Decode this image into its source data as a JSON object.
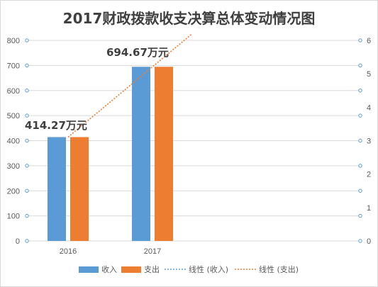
{
  "chart_data": {
    "type": "bar",
    "title": "2017财政拨款收支决算总体变动情况图",
    "categories": [
      "2016",
      "2017"
    ],
    "series": [
      {
        "name": "收入",
        "values": [
          414.27,
          694.67
        ],
        "color": "#5b9bd5"
      },
      {
        "name": "支出",
        "values": [
          414.27,
          694.67
        ],
        "color": "#ed7d31"
      }
    ],
    "trendlines": [
      {
        "name": "线性 (收入)",
        "color": "#5b9bd5",
        "style": "dotted"
      },
      {
        "name": "线性 (支出)",
        "color": "#ed7d31",
        "style": "dotted",
        "visible_from_category": "2016",
        "visible_to_category": "2017"
      }
    ],
    "data_labels": [
      "414.27万元",
      "694.67万元"
    ],
    "y_left": {
      "min": 0,
      "max": 800,
      "step": 100,
      "ticks": [
        "0",
        "100",
        "200",
        "300",
        "400",
        "500",
        "600",
        "700",
        "800"
      ]
    },
    "y_right": {
      "min": 0,
      "max": 6,
      "step": 1,
      "ticks": [
        "0",
        "1",
        "2",
        "3",
        "4",
        "5",
        "6"
      ]
    },
    "grid": true,
    "legend_position": "bottom"
  }
}
